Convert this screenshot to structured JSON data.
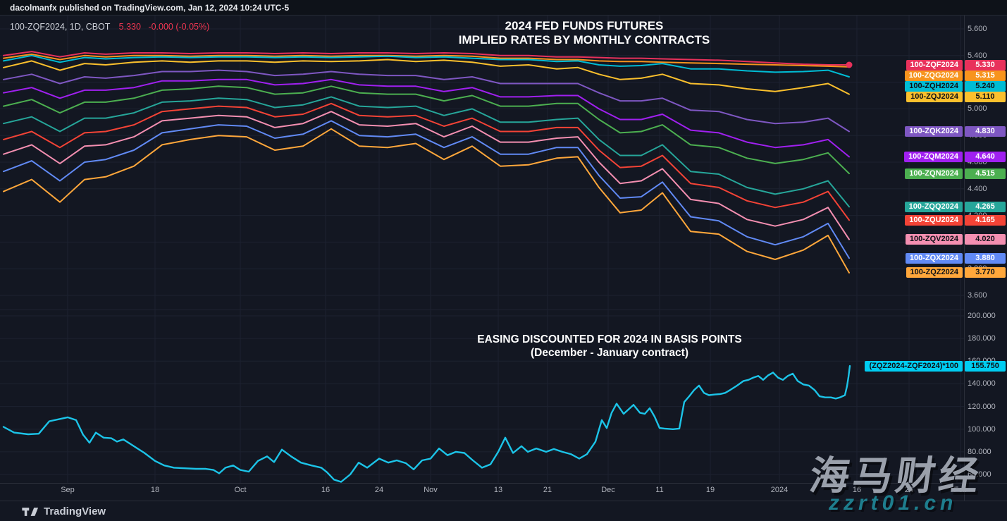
{
  "publish_bar": {
    "text": "dacolmanfx published on TradingView.com, Jan 12, 2024 10:24 UTC-5"
  },
  "legend": {
    "symbol": "100-ZQF2024, 1D, CBOT",
    "price": "5.330",
    "change": "-0.000 (-0.05%)"
  },
  "titles": {
    "top": [
      "2024 FED FUNDS FUTURES",
      "IMPLIED RATES BY MONTHLY CONTRACTS"
    ],
    "bottom": [
      "EASING DISCOUNTED FOR 2024 IN BASIS POINTS",
      "(December - January contract)"
    ]
  },
  "watermark": {
    "line1": "海马财经",
    "line2": "zzrt01.cn"
  },
  "footer": {
    "brand": "TradingView"
  },
  "colors": {
    "background": "#131722",
    "grid": "#1d2230",
    "axis_text": "#b2b5be",
    "border": "#2a2e39",
    "title": "#ffffff",
    "legend_change": "#f23652",
    "watermark_gray": "#9aa0ab",
    "watermark_teal": "#1e7e8e"
  },
  "chart_data": {
    "type": "line",
    "x_unit": "px",
    "xticks": [
      {
        "label": "Sep",
        "x": 96
      },
      {
        "label": "18",
        "x": 220
      },
      {
        "label": "Oct",
        "x": 341
      },
      {
        "label": "16",
        "x": 462
      },
      {
        "label": "24",
        "x": 538
      },
      {
        "label": "Nov",
        "x": 611
      },
      {
        "label": "13",
        "x": 707
      },
      {
        "label": "21",
        "x": 777
      },
      {
        "label": "Dec",
        "x": 863
      },
      {
        "label": "11",
        "x": 936
      },
      {
        "label": "19",
        "x": 1008
      },
      {
        "label": "2024",
        "x": 1106
      },
      {
        "label": "16",
        "x": 1216
      },
      {
        "label": "24",
        "x": 1290
      },
      {
        "label": "Feb",
        "x": 1363
      }
    ],
    "panes": [
      {
        "name": "implied-rates",
        "ylim": [
          3.6,
          5.6
        ],
        "yticks": [
          "5.600",
          "5.400",
          "5.200",
          "5.000",
          "4.800",
          "4.600",
          "4.400",
          "4.200",
          "4.000",
          "3.800",
          "3.600"
        ],
        "x": [
          5,
          45,
          85,
          120,
          150,
          190,
          230,
          270,
          310,
          350,
          390,
          430,
          470,
          510,
          550,
          590,
          630,
          670,
          710,
          750,
          790,
          820,
          850,
          880,
          910,
          940,
          980,
          1020,
          1060,
          1100,
          1140,
          1175,
          1205
        ],
        "series": [
          {
            "name": "100-ZQF2024",
            "last_label": "5.330",
            "color": "#e8315b",
            "text_color": "#ffffff",
            "end_dot": true,
            "values": [
              5.4,
              5.43,
              5.39,
              5.42,
              5.41,
              5.42,
              5.42,
              5.415,
              5.42,
              5.42,
              5.415,
              5.42,
              5.415,
              5.42,
              5.42,
              5.415,
              5.42,
              5.415,
              5.4,
              5.4,
              5.39,
              5.39,
              5.385,
              5.38,
              5.38,
              5.375,
              5.37,
              5.365,
              5.355,
              5.345,
              5.335,
              5.33,
              5.33
            ]
          },
          {
            "name": "100-ZQG2024",
            "last_label": "5.315",
            "color": "#f7941d",
            "text_color": "#ffffff",
            "values": [
              5.38,
              5.41,
              5.37,
              5.4,
              5.39,
              5.4,
              5.4,
              5.395,
              5.4,
              5.4,
              5.395,
              5.4,
              5.395,
              5.4,
              5.4,
              5.395,
              5.4,
              5.395,
              5.38,
              5.38,
              5.37,
              5.37,
              5.36,
              5.355,
              5.355,
              5.35,
              5.345,
              5.34,
              5.335,
              5.33,
              5.325,
              5.32,
              5.315
            ]
          },
          {
            "name": "100-ZQH2024",
            "last_label": "5.240",
            "color": "#00bcd4",
            "text_color": "#0d1117",
            "values": [
              5.36,
              5.4,
              5.35,
              5.385,
              5.375,
              5.385,
              5.39,
              5.385,
              5.39,
              5.39,
              5.385,
              5.39,
              5.385,
              5.39,
              5.395,
              5.385,
              5.39,
              5.38,
              5.37,
              5.37,
              5.355,
              5.36,
              5.33,
              5.32,
              5.325,
              5.34,
              5.3,
              5.3,
              5.285,
              5.275,
              5.28,
              5.29,
              5.24
            ]
          },
          {
            "name": "100-ZQJ2024",
            "last_label": "5.110",
            "color": "#fbc02d",
            "text_color": "#0d1117",
            "values": [
              5.31,
              5.36,
              5.29,
              5.34,
              5.33,
              5.35,
              5.36,
              5.35,
              5.36,
              5.36,
              5.35,
              5.36,
              5.355,
              5.36,
              5.37,
              5.355,
              5.365,
              5.35,
              5.32,
              5.33,
              5.3,
              5.31,
              5.26,
              5.22,
              5.23,
              5.26,
              5.19,
              5.18,
              5.15,
              5.13,
              5.16,
              5.19,
              5.11
            ]
          },
          {
            "name": "100-ZQK2024",
            "last_label": "4.830",
            "color": "#7e57c2",
            "text_color": "#ffffff",
            "values": [
              5.22,
              5.26,
              5.19,
              5.24,
              5.23,
              5.25,
              5.28,
              5.28,
              5.29,
              5.28,
              5.25,
              5.26,
              5.28,
              5.26,
              5.25,
              5.25,
              5.22,
              5.24,
              5.19,
              5.19,
              5.19,
              5.19,
              5.12,
              5.06,
              5.06,
              5.08,
              4.99,
              4.98,
              4.92,
              4.89,
              4.9,
              4.93,
              4.83
            ]
          },
          {
            "name": "100-ZQM2024",
            "last_label": "4.640",
            "color": "#a020f0",
            "text_color": "#ffffff",
            "values": [
              5.12,
              5.16,
              5.08,
              5.14,
              5.14,
              5.16,
              5.21,
              5.21,
              5.22,
              5.22,
              5.18,
              5.19,
              5.22,
              5.18,
              5.17,
              5.17,
              5.13,
              5.16,
              5.09,
              5.09,
              5.1,
              5.1,
              5.0,
              4.92,
              4.92,
              4.96,
              4.84,
              4.82,
              4.75,
              4.71,
              4.73,
              4.77,
              4.64
            ]
          },
          {
            "name": "100-ZQN2024",
            "last_label": "4.515",
            "color": "#4caf50",
            "text_color": "#ffffff",
            "values": [
              5.02,
              5.07,
              4.97,
              5.05,
              5.05,
              5.08,
              5.14,
              5.15,
              5.17,
              5.16,
              5.11,
              5.12,
              5.17,
              5.12,
              5.11,
              5.11,
              5.06,
              5.1,
              5.02,
              5.02,
              5.04,
              5.04,
              4.92,
              4.82,
              4.83,
              4.88,
              4.73,
              4.71,
              4.63,
              4.59,
              4.62,
              4.67,
              4.515
            ]
          },
          {
            "name": "100-ZQQ2024",
            "last_label": "4.265",
            "color": "#26a69a",
            "text_color": "#ffffff",
            "values": [
              4.89,
              4.94,
              4.83,
              4.93,
              4.93,
              4.97,
              5.05,
              5.06,
              5.08,
              5.07,
              5.01,
              5.03,
              5.09,
              5.02,
              5.01,
              5.02,
              4.95,
              5.0,
              4.9,
              4.9,
              4.92,
              4.93,
              4.77,
              4.65,
              4.65,
              4.73,
              4.53,
              4.51,
              4.41,
              4.36,
              4.4,
              4.46,
              4.265
            ]
          },
          {
            "name": "100-ZQU2024",
            "last_label": "4.165",
            "color": "#f44336",
            "text_color": "#ffffff",
            "values": [
              4.77,
              4.83,
              4.71,
              4.82,
              4.83,
              4.88,
              4.98,
              5.0,
              5.02,
              5.01,
              4.94,
              4.96,
              5.04,
              4.95,
              4.94,
              4.95,
              4.87,
              4.93,
              4.83,
              4.83,
              4.86,
              4.86,
              4.69,
              4.56,
              4.57,
              4.65,
              4.44,
              4.41,
              4.31,
              4.26,
              4.3,
              4.38,
              4.165
            ]
          },
          {
            "name": "100-ZQV2024",
            "last_label": "4.020",
            "color": "#f48fb1",
            "text_color": "#0d1117",
            "values": [
              4.66,
              4.73,
              4.59,
              4.72,
              4.73,
              4.79,
              4.91,
              4.93,
              4.95,
              4.94,
              4.86,
              4.89,
              4.98,
              4.88,
              4.87,
              4.89,
              4.79,
              4.87,
              4.75,
              4.75,
              4.78,
              4.79,
              4.6,
              4.44,
              4.46,
              4.55,
              4.32,
              4.29,
              4.17,
              4.12,
              4.17,
              4.26,
              4.02
            ]
          },
          {
            "name": "100-ZQX2024",
            "last_label": "3.880",
            "color": "#618af5",
            "text_color": "#ffffff",
            "values": [
              4.53,
              4.61,
              4.46,
              4.6,
              4.62,
              4.69,
              4.82,
              4.85,
              4.88,
              4.87,
              4.78,
              4.81,
              4.91,
              4.8,
              4.79,
              4.81,
              4.71,
              4.79,
              4.66,
              4.66,
              4.71,
              4.71,
              4.5,
              4.33,
              4.34,
              4.45,
              4.19,
              4.16,
              4.04,
              3.98,
              4.04,
              4.14,
              3.88
            ]
          },
          {
            "name": "100-ZQZ2024",
            "last_label": "3.770",
            "color": "#ffa73b",
            "text_color": "#0d1117",
            "values": [
              4.38,
              4.47,
              4.3,
              4.47,
              4.49,
              4.57,
              4.73,
              4.77,
              4.8,
              4.79,
              4.69,
              4.72,
              4.85,
              4.72,
              4.71,
              4.74,
              4.62,
              4.72,
              4.57,
              4.58,
              4.63,
              4.64,
              4.41,
              4.22,
              4.24,
              4.37,
              4.08,
              4.06,
              3.93,
              3.87,
              3.94,
              4.05,
              3.77
            ]
          }
        ]
      },
      {
        "name": "easing-basis-points",
        "ylim": [
          60,
          200
        ],
        "yticks": [
          "200.000",
          "180.000",
          "160.000",
          "140.000",
          "120.000",
          "100.000",
          "80.000",
          "60.000"
        ],
        "series": [
          {
            "name": "(ZQZ2024-ZQF2024)*100",
            "last_label": "155.750",
            "color": "#1cc4e8",
            "label_bg": "#00cdf2",
            "text_color": "#0d1117",
            "x": [
              5,
              20,
              40,
              55,
              70,
              85,
              96,
              108,
              118,
              127,
              136,
              147,
              158,
              166,
              175,
              190,
              205,
              220,
              233,
              247,
              262,
              278,
              292,
              303,
              311,
              320,
              331,
              341,
              353,
              366,
              379,
              389,
              400,
              413,
              427,
              442,
              456,
              464,
              474,
              484,
              497,
              509,
              521,
              538,
              551,
              563,
              576,
              587,
              599,
              611,
              623,
              635,
              647,
              659,
              671,
              684,
              696,
              707,
              717,
              728,
              740,
              749,
              761,
              775,
              786,
              798,
              810,
              822,
              833,
              845,
              854,
              861,
              868,
              875,
              885,
              892,
              899,
              908,
              915,
              922,
              929,
              936,
              943,
              955,
              964,
              971,
              978,
              985,
              992,
              999,
              1006,
              1013,
              1022,
              1029,
              1036,
              1046,
              1055,
              1062,
              1069,
              1076,
              1083,
              1090,
              1097,
              1104,
              1111,
              1118,
              1125,
              1132,
              1140,
              1148,
              1156,
              1163,
              1171,
              1179,
              1186,
              1192,
              1199,
              1202,
              1204,
              1206
            ],
            "values": [
              102,
              97,
              95.5,
              96,
              107,
              109,
              110.5,
              108,
              95,
              88,
              97,
              92.5,
              92,
              89,
              91,
              85,
              79,
              72,
              68,
              66,
              65.5,
              65,
              65,
              64,
              61,
              66,
              68,
              64,
              62.5,
              72,
              76,
              71,
              82,
              76,
              70.5,
              68,
              66,
              62,
              55.5,
              53.5,
              60,
              70.5,
              66,
              74,
              70.5,
              72.5,
              70,
              64.5,
              72.5,
              74,
              83,
              77,
              80,
              79,
              72.5,
              66,
              69,
              80,
              92.5,
              79,
              85,
              80,
              83,
              80,
              82.5,
              80,
              78,
              74,
              78,
              89,
              108,
              101,
              114.5,
              122.5,
              113.5,
              117.5,
              121.5,
              114.5,
              113.5,
              118.5,
              111,
              101,
              100.5,
              100,
              100.5,
              124,
              129,
              134.5,
              138.5,
              132,
              130,
              130.5,
              131,
              132,
              134.5,
              138.5,
              142.5,
              143.5,
              145.5,
              147,
              143.5,
              147.5,
              150,
              145.5,
              143.5,
              147,
              149,
              142.5,
              139.5,
              138.5,
              134.5,
              129,
              128,
              128,
              127,
              128,
              130,
              138,
              146,
              155.75
            ]
          }
        ]
      }
    ]
  }
}
